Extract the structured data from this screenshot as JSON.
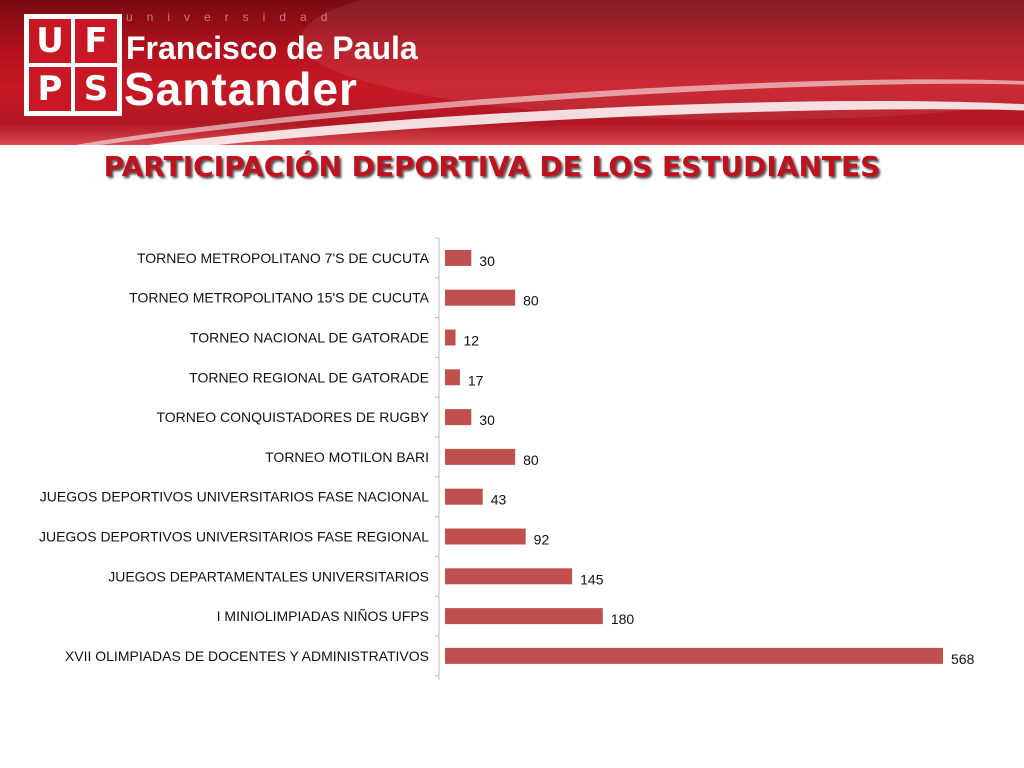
{
  "header": {
    "logo_letters": [
      "U",
      "F",
      "P",
      "S"
    ],
    "university_small": "universidad",
    "university_line1": "Francisco de Paula",
    "university_line2": "Santander"
  },
  "title": "PARTICIPACIÓN DEPORTIVA DE LOS ESTUDIANTES",
  "colors": {
    "bar": "#c0504d",
    "banner": "#c81824",
    "title": "#c0121e"
  },
  "chart_data": {
    "type": "bar",
    "orientation": "horizontal",
    "categories": [
      "TORNEO METROPOLITANO  7'S DE CUCUTA",
      "TORNEO METROPOLITANO  15'S DE CUCUTA",
      "TORNEO NACIONAL DE GATORADE",
      "TORNEO REGIONAL DE GATORADE",
      "TORNEO CONQUISTADORES DE RUGBY",
      "TORNEO MOTILON BARI",
      "JUEGOS DEPORTIVOS UNIVERSITARIOS FASE NACIONAL",
      "JUEGOS DEPORTIVOS UNIVERSITARIOS FASE REGIONAL",
      "JUEGOS DEPARTAMENTALES UNIVERSITARIOS",
      "I MINIOLIMPIADAS  NIÑOS UFPS",
      "XVII OLIMPIADAS DE DOCENTES Y ADMINISTRATIVOS"
    ],
    "values": [
      30,
      80,
      12,
      17,
      30,
      80,
      43,
      92,
      145,
      180,
      568
    ],
    "xlim": [
      0,
      568
    ],
    "grid": false,
    "data_labels": true
  }
}
